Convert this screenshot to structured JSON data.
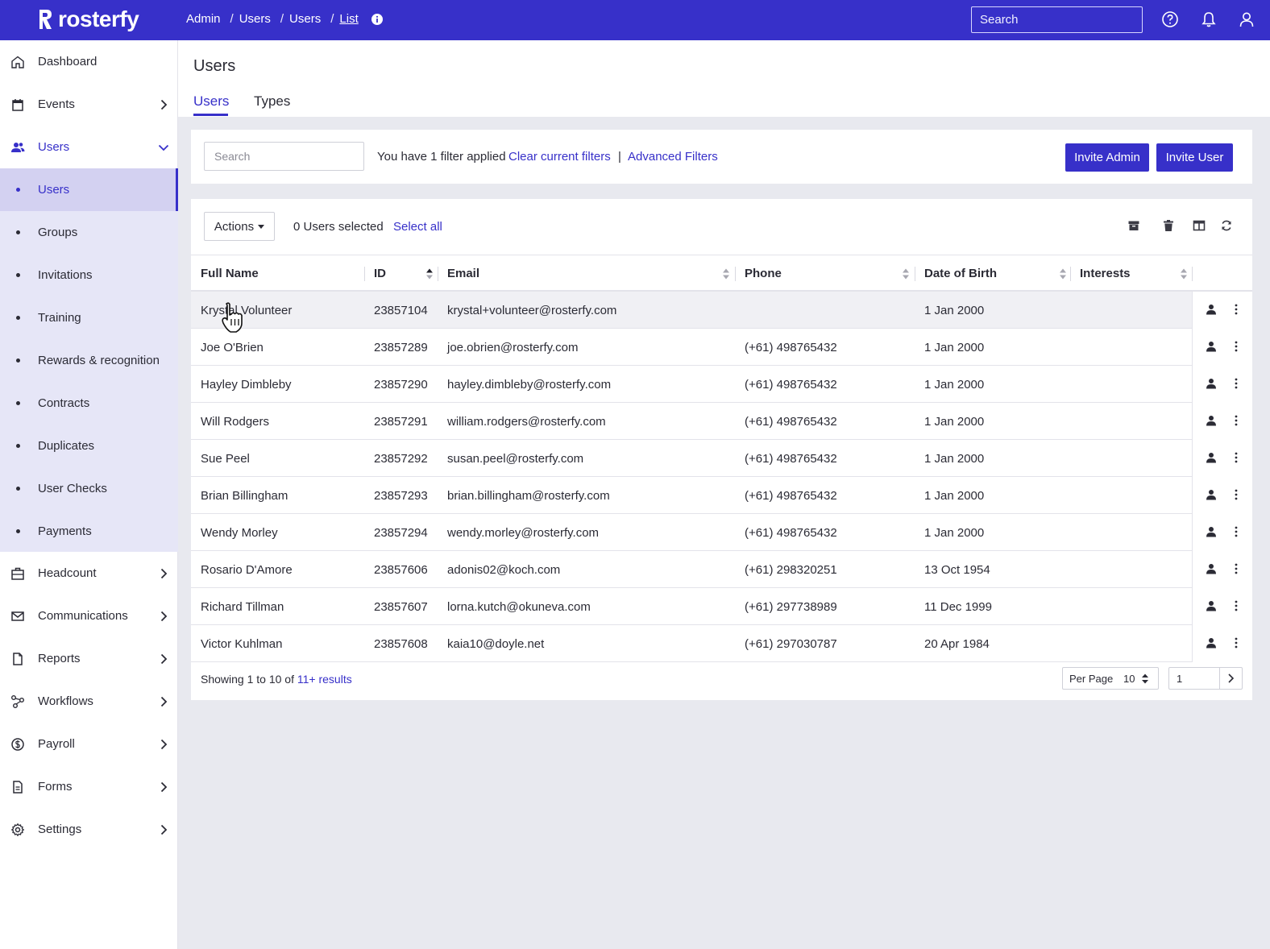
{
  "app": {
    "brand": "rosterfy"
  },
  "breadcrumb": [
    "Admin",
    "Users",
    "Users",
    "List"
  ],
  "top_search": {
    "placeholder": "Search"
  },
  "sidebar": {
    "items": [
      {
        "label": "Dashboard",
        "icon": "home-icon"
      },
      {
        "label": "Events",
        "icon": "calendar-icon"
      },
      {
        "label": "Users",
        "icon": "users-icon"
      },
      {
        "label": "Headcount",
        "icon": "briefcase-icon"
      },
      {
        "label": "Communications",
        "icon": "mail-icon"
      },
      {
        "label": "Reports",
        "icon": "file-icon"
      },
      {
        "label": "Workflows",
        "icon": "workflow-icon"
      },
      {
        "label": "Payroll",
        "icon": "dollar-icon"
      },
      {
        "label": "Forms",
        "icon": "form-icon"
      },
      {
        "label": "Settings",
        "icon": "gear-icon"
      }
    ],
    "users_submenu": [
      "Users",
      "Groups",
      "Invitations",
      "Training",
      "Rewards & recognition",
      "Contracts",
      "Duplicates",
      "User Checks",
      "Payments"
    ]
  },
  "page": {
    "title": "Users",
    "tabs": [
      "Users",
      "Types"
    ]
  },
  "filters": {
    "search_placeholder": "Search",
    "status": "You have 1 filter applied",
    "clear": "Clear current filters",
    "separator": "|",
    "advanced": "Advanced Filters",
    "invite_admin": "Invite Admin",
    "invite_user": "Invite User"
  },
  "toolbar": {
    "actions": "Actions",
    "selected": "0 Users selected",
    "select_all": "Select all"
  },
  "table": {
    "columns": [
      "Full Name",
      "ID",
      "Email",
      "Phone",
      "Date of Birth",
      "Interests"
    ],
    "rows": [
      {
        "name": "Krystal Volunteer",
        "id": "23857104",
        "email": "krystal+volunteer@rosterfy.com",
        "phone": "",
        "dob": "1 Jan 2000"
      },
      {
        "name": "Joe O'Brien",
        "id": "23857289",
        "email": "joe.obrien@rosterfy.com",
        "phone": "(+61) 498765432",
        "dob": "1 Jan 2000"
      },
      {
        "name": "Hayley Dimbleby",
        "id": "23857290",
        "email": "hayley.dimbleby@rosterfy.com",
        "phone": "(+61) 498765432",
        "dob": "1 Jan 2000"
      },
      {
        "name": "Will Rodgers",
        "id": "23857291",
        "email": "william.rodgers@rosterfy.com",
        "phone": "(+61) 498765432",
        "dob": "1 Jan 2000"
      },
      {
        "name": "Sue Peel",
        "id": "23857292",
        "email": "susan.peel@rosterfy.com",
        "phone": "(+61) 498765432",
        "dob": "1 Jan 2000"
      },
      {
        "name": "Brian Billingham",
        "id": "23857293",
        "email": "brian.billingham@rosterfy.com",
        "phone": "(+61) 498765432",
        "dob": "1 Jan 2000"
      },
      {
        "name": "Wendy Morley",
        "id": "23857294",
        "email": "wendy.morley@rosterfy.com",
        "phone": "(+61) 498765432",
        "dob": "1 Jan 2000"
      },
      {
        "name": "Rosario D'Amore",
        "id": "23857606",
        "email": "adonis02@koch.com",
        "phone": "(+61) 298320251",
        "dob": "13 Oct 1954"
      },
      {
        "name": "Richard Tillman",
        "id": "23857607",
        "email": "lorna.kutch@okuneva.com",
        "phone": "(+61) 297738989",
        "dob": "11 Dec 1999"
      },
      {
        "name": "Victor Kuhlman",
        "id": "23857608",
        "email": "kaia10@doyle.net",
        "phone": "(+61) 297030787",
        "dob": "20 Apr 1984"
      }
    ]
  },
  "footer": {
    "showing": "Showing 1 to 10 of",
    "results": "11+ results",
    "per_page_label": "Per Page",
    "per_page": "10",
    "page": "1"
  },
  "colors": {
    "accent": "#3730c9",
    "submenu_bg": "#e6e6f7",
    "active_bg": "#d3d1f1"
  }
}
